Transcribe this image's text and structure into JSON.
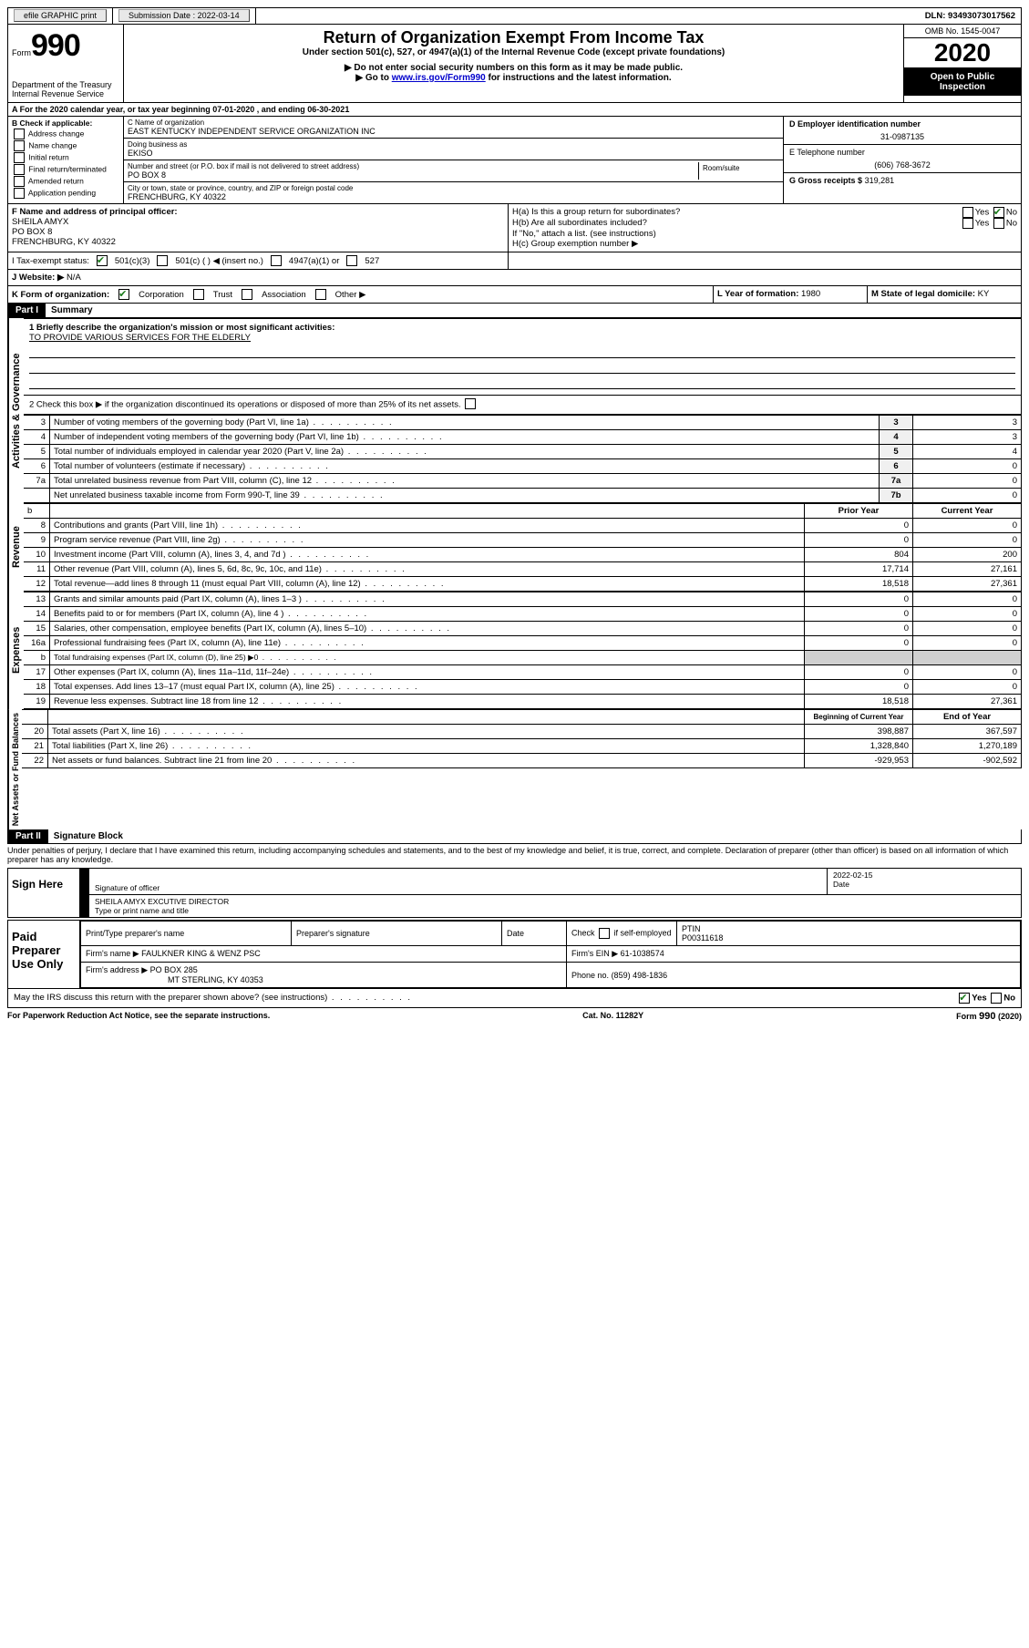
{
  "colors": {
    "black": "#000000",
    "white": "#ffffff",
    "link": "#0000cc",
    "check": "#1a7a1a",
    "shade": "#f0f0f0"
  },
  "topbar": {
    "efile": "efile GRAPHIC print",
    "sub_label": "Submission Date :",
    "sub_date": "2022-03-14",
    "dln_label": "DLN:",
    "dln": "93493073017562"
  },
  "header": {
    "form_word": "Form",
    "form_num": "990",
    "dept1": "Department of the Treasury",
    "dept2": "Internal Revenue Service",
    "title": "Return of Organization Exempt From Income Tax",
    "sub": "Under section 501(c), 527, or 4947(a)(1) of the Internal Revenue Code (except private foundations)",
    "instr1": "▶ Do not enter social security numbers on this form as it may be made public.",
    "instr2_pre": "▶ Go to ",
    "instr2_link": "www.irs.gov/Form990",
    "instr2_post": " for instructions and the latest information.",
    "omb": "OMB No. 1545-0047",
    "year": "2020",
    "inspect1": "Open to Public",
    "inspect2": "Inspection"
  },
  "row_a": "A For the 2020 calendar year, or tax year beginning 07-01-2020   , and ending 06-30-2021",
  "col_b": {
    "hdr": "B Check if applicable:",
    "addr": "Address change",
    "name": "Name change",
    "init": "Initial return",
    "final": "Final return/terminated",
    "amend": "Amended return",
    "app": "Application pending"
  },
  "col_c": {
    "name_label": "C Name of organization",
    "name": "EAST KENTUCKY INDEPENDENT SERVICE ORGANIZATION INC",
    "dba_label": "Doing business as",
    "dba": "EKISO",
    "street_label": "Number and street (or P.O. box if mail is not delivered to street address)",
    "street": "PO BOX 8",
    "room": "Room/suite",
    "city_label": "City or town, state or province, country, and ZIP or foreign postal code",
    "city": "FRENCHBURG, KY  40322"
  },
  "col_d": {
    "ein_label": "D Employer identification number",
    "ein": "31-0987135",
    "tel_label": "E Telephone number",
    "tel": "(606) 768-3672",
    "gross_label": "G Gross receipts $",
    "gross": "319,281"
  },
  "row_f": {
    "label": "F Name and address of principal officer:",
    "name": "SHEILA AMYX",
    "addr1": "PO BOX 8",
    "addr2": "FRENCHBURG, KY  40322"
  },
  "row_h": {
    "ha_label": "H(a)  Is this a group return for subordinates?",
    "hb_label": "H(b)  Are all subordinates included?",
    "hb_note": "If \"No,\" attach a list. (see instructions)",
    "hc_label": "H(c)  Group exemption number ▶",
    "yes": "Yes",
    "no": "No"
  },
  "row_i": {
    "label": "I   Tax-exempt status:",
    "o1": "501(c)(3)",
    "o2": "501(c) (   ) ◀ (insert no.)",
    "o3": "4947(a)(1) or",
    "o4": "527"
  },
  "row_j": {
    "label": "J   Website: ▶",
    "val": "N/A"
  },
  "row_k": {
    "label": "K Form of organization:",
    "corp": "Corporation",
    "trust": "Trust",
    "assoc": "Association",
    "other": "Other ▶"
  },
  "row_l": {
    "label": "L Year of formation:",
    "val": "1980"
  },
  "row_m": {
    "label": "M State of legal domicile:",
    "val": "KY"
  },
  "part1": {
    "hdr": "Part I",
    "title": "Summary"
  },
  "summary": {
    "l1_label": "1  Briefly describe the organization's mission or most significant activities:",
    "l1_val": "TO PROVIDE VARIOUS SERVICES FOR THE ELDERLY",
    "l2": "2   Check this box ▶          if the organization discontinued its operations or disposed of more than 25% of its net assets.",
    "rows_ag": [
      {
        "n": "3",
        "t": "Number of voting members of the governing body (Part VI, line 1a)",
        "c": "3",
        "v": "3"
      },
      {
        "n": "4",
        "t": "Number of independent voting members of the governing body (Part VI, line 1b)",
        "c": "4",
        "v": "3"
      },
      {
        "n": "5",
        "t": "Total number of individuals employed in calendar year 2020 (Part V, line 2a)",
        "c": "5",
        "v": "4"
      },
      {
        "n": "6",
        "t": "Total number of volunteers (estimate if necessary)",
        "c": "6",
        "v": "0"
      },
      {
        "n": "7a",
        "t": "Total unrelated business revenue from Part VIII, column (C), line 12",
        "c": "7a",
        "v": "0"
      },
      {
        "n": "",
        "t": "Net unrelated business taxable income from Form 990-T, line 39",
        "c": "7b",
        "v": "0"
      }
    ],
    "hdr_b": "b",
    "hdr_prior": "Prior Year",
    "hdr_curr": "Current Year",
    "rev": [
      {
        "n": "8",
        "t": "Contributions and grants (Part VIII, line 1h)",
        "p": "0",
        "c": "0"
      },
      {
        "n": "9",
        "t": "Program service revenue (Part VIII, line 2g)",
        "p": "0",
        "c": "0"
      },
      {
        "n": "10",
        "t": "Investment income (Part VIII, column (A), lines 3, 4, and 7d )",
        "p": "804",
        "c": "200"
      },
      {
        "n": "11",
        "t": "Other revenue (Part VIII, column (A), lines 5, 6d, 8c, 9c, 10c, and 11e)",
        "p": "17,714",
        "c": "27,161"
      },
      {
        "n": "12",
        "t": "Total revenue—add lines 8 through 11 (must equal Part VIII, column (A), line 12)",
        "p": "18,518",
        "c": "27,361"
      }
    ],
    "exp": [
      {
        "n": "13",
        "t": "Grants and similar amounts paid (Part IX, column (A), lines 1–3 )",
        "p": "0",
        "c": "0"
      },
      {
        "n": "14",
        "t": "Benefits paid to or for members (Part IX, column (A), line 4 )",
        "p": "0",
        "c": "0"
      },
      {
        "n": "15",
        "t": "Salaries, other compensation, employee benefits (Part IX, column (A), lines 5–10)",
        "p": "0",
        "c": "0"
      },
      {
        "n": "16a",
        "t": "Professional fundraising fees (Part IX, column (A), line 11e)",
        "p": "0",
        "c": "0"
      },
      {
        "n": "b",
        "t": "Total fundraising expenses (Part IX, column (D), line 25) ▶0",
        "p": "",
        "c": "",
        "shade": true
      },
      {
        "n": "17",
        "t": "Other expenses (Part IX, column (A), lines 11a–11d, 11f–24e)",
        "p": "0",
        "c": "0"
      },
      {
        "n": "18",
        "t": "Total expenses. Add lines 13–17 (must equal Part IX, column (A), line 25)",
        "p": "0",
        "c": "0"
      },
      {
        "n": "19",
        "t": "Revenue less expenses. Subtract line 18 from line 12",
        "p": "18,518",
        "c": "27,361"
      }
    ],
    "hdr_begin": "Beginning of Current Year",
    "hdr_end": "End of Year",
    "net": [
      {
        "n": "20",
        "t": "Total assets (Part X, line 16)",
        "p": "398,887",
        "c": "367,597"
      },
      {
        "n": "21",
        "t": "Total liabilities (Part X, line 26)",
        "p": "1,328,840",
        "c": "1,270,189"
      },
      {
        "n": "22",
        "t": "Net assets or fund balances. Subtract line 21 from line 20",
        "p": "-929,953",
        "c": "-902,592"
      }
    ]
  },
  "side": {
    "ag": "Activities & Governance",
    "rev": "Revenue",
    "exp": "Expenses",
    "net": "Net Assets or Fund Balances"
  },
  "part2": {
    "hdr": "Part II",
    "title": "Signature Block",
    "decl": "Under penalties of perjury, I declare that I have examined this return, including accompanying schedules and statements, and to the best of my knowledge and belief, it is true, correct, and complete. Declaration of preparer (other than officer) is based on all information of which preparer has any knowledge."
  },
  "sign": {
    "hdr": "Sign Here",
    "sig_label": "Signature of officer",
    "date_label": "Date",
    "date": "2022-02-15",
    "name": "SHEILA AMYX EXCUTIVE DIRECTOR",
    "name_label": "Type or print name and title"
  },
  "prep": {
    "hdr": "Paid Preparer Use Only",
    "c1": "Print/Type preparer's name",
    "c2": "Preparer's signature",
    "c3": "Date",
    "c4_a": "Check",
    "c4_b": "if self-employed",
    "c5": "PTIN",
    "ptin": "P00311618",
    "firm_label": "Firm's name     ▶",
    "firm": "FAULKNER KING & WENZ PSC",
    "ein_label": "Firm's EIN ▶",
    "ein": "61-1038574",
    "addr_label": "Firm's address ▶",
    "addr1": "PO BOX 285",
    "addr2": "MT STERLING, KY  40353",
    "phone_label": "Phone no.",
    "phone": "(859) 498-1836",
    "discuss": "May the IRS discuss this return with the preparer shown above? (see instructions)"
  },
  "footer": {
    "l": "For Paperwork Reduction Act Notice, see the separate instructions.",
    "c": "Cat. No. 11282Y",
    "r": "Form 990 (2020)"
  }
}
